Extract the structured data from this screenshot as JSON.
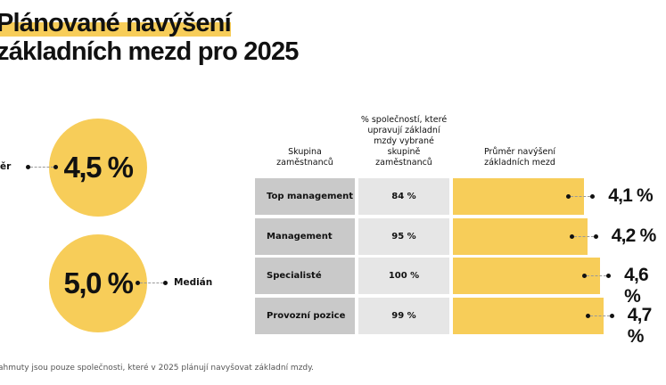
{
  "title": {
    "line1": "Plánované navýšení",
    "line2": "základních mezd pro 2025"
  },
  "summary": {
    "mean": {
      "label": "ěr",
      "value": "4,5 %"
    },
    "median": {
      "label": "Medián",
      "value": "5,0 %"
    }
  },
  "colors": {
    "accent": "#f7cd59",
    "group_cell": "#c9c9c9",
    "share_cell": "#e6e6e6"
  },
  "chart_data": {
    "type": "bar",
    "orientation": "horizontal",
    "headers": [
      "Skupina zaměstnanců",
      "% společností, které upravují základní mzdy vybrané skupině zaměstnanců",
      "Průměr navýšení základních mezd"
    ],
    "categories": [
      "Top management",
      "Management",
      "Specialisté",
      "Provozní pozice"
    ],
    "share_labels": [
      "84 %",
      "95 %",
      "100 %",
      "99 %"
    ],
    "values": [
      4.1,
      4.2,
      4.6,
      4.7
    ],
    "value_labels": [
      "4,1 %",
      "4,2 %",
      "4,6 %",
      "4,7 %"
    ]
  },
  "footnote": "ahmuty jsou pouze společnosti, které v 2025 plánují navyšovat základní mzdy."
}
